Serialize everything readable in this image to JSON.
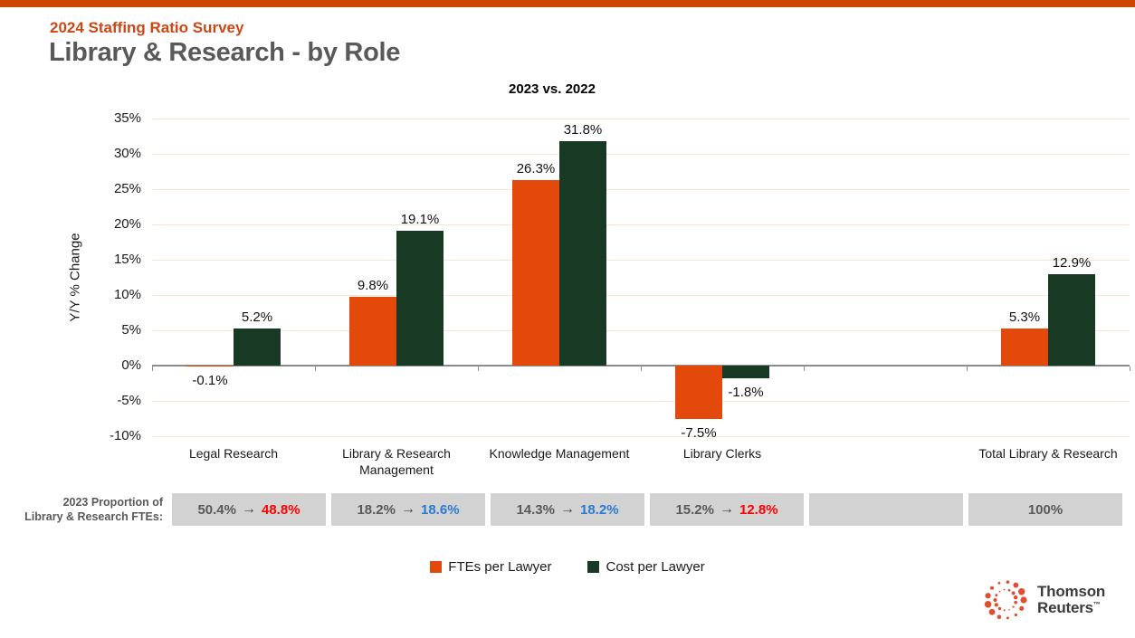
{
  "header": {
    "eyebrow": "2024 Staffing Ratio Survey",
    "title": "Library & Research - by Role"
  },
  "chart_data": {
    "type": "bar",
    "title": "2023 vs. 2022",
    "xlabel": "",
    "ylabel": "Y/Y % Change",
    "ylim": [
      -10,
      35
    ],
    "ytick_step": 5,
    "ytick_suffix": "%",
    "grid": true,
    "legend_position": "bottom",
    "categories": [
      "Legal Research",
      "Library & Research\nManagement",
      "Knowledge Management",
      "Library Clerks",
      "",
      "Total Library & Research"
    ],
    "series": [
      {
        "name": "FTEs per Lawyer",
        "color": "#E2490B",
        "values": [
          -0.1,
          9.8,
          26.3,
          -7.5,
          null,
          5.3
        ]
      },
      {
        "name": "Cost per Lawyer",
        "color": "#183A25",
        "values": [
          5.2,
          19.1,
          31.8,
          -1.8,
          null,
          12.9
        ]
      }
    ],
    "value_labels": [
      [
        "-0.1%",
        "9.8%",
        "26.3%",
        "-7.5%",
        "",
        "5.3%"
      ],
      [
        "5.2%",
        "19.1%",
        "31.8%",
        "-1.8%",
        "",
        "12.9%"
      ]
    ]
  },
  "proportion_row": {
    "label_line1": "2023 Proportion of",
    "label_line2": "Library & Research FTEs:",
    "arrow": "→",
    "cells": [
      {
        "from": "50.4%",
        "to": "48.8%",
        "trend": "down"
      },
      {
        "from": "18.2%",
        "to": "18.6%",
        "trend": "up"
      },
      {
        "from": "14.3%",
        "to": "18.2%",
        "trend": "up"
      },
      {
        "from": "15.2%",
        "to": "12.8%",
        "trend": "down"
      },
      {
        "empty": true
      },
      {
        "value": "100%"
      }
    ],
    "trend_colors": {
      "up": "#2B7BD4",
      "down": "#FF0000"
    }
  },
  "logo": {
    "line1": "Thomson",
    "line2": "Reuters",
    "tm": "™",
    "dot_color": "#DE4F32"
  },
  "colors": {
    "accent_strip": "#CB4702",
    "eyebrow_text": "#CD4714",
    "title_text": "#595959",
    "gridline": "#F5E6CF",
    "axis_line": "#8C8C8C",
    "band_bg": "#D2D2D2",
    "band_text": "#595959"
  }
}
